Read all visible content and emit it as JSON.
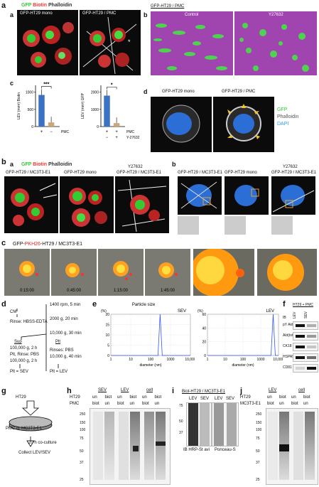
{
  "section_a": {
    "label": "a",
    "sub_a": {
      "label": "a",
      "legend": [
        {
          "text": "GFP",
          "color": "#33cc33"
        },
        {
          "text": "Biotin",
          "color": "#ff3333"
        },
        {
          "text": "Phalloidin",
          "color": "#ffffff"
        }
      ],
      "panels": [
        "GFP-HT29 mono",
        "GFP-HT29 / PMC"
      ]
    },
    "sub_b": {
      "label": "b",
      "title": "GFP-HT29 / PMC",
      "panels": [
        "Control",
        "Y27632"
      ]
    },
    "sub_c": {
      "label": "c"
    },
    "sub_d": {
      "label": "d",
      "panels": [
        "GFP-HT29 mono",
        "GFP-HT29 / PMC"
      ],
      "legend": [
        {
          "text": "GFP",
          "color": "#33cc33"
        },
        {
          "text": "Phalloidin",
          "color": "#ffffff"
        },
        {
          "text": "DAPI",
          "color": "#3399ff"
        }
      ]
    }
  },
  "chart_data": [
    {
      "type": "bar",
      "ylabel": "LEV (mm²) Biotin",
      "categories": [
        "+",
        "−"
      ],
      "row_label": "PMC",
      "values": [
        920,
        120
      ],
      "ylim": [
        0,
        1200
      ],
      "yticks": [
        0,
        500,
        1000
      ],
      "significance": "***",
      "colors": [
        "#3b73c4",
        "#c8a87a"
      ]
    },
    {
      "type": "bar",
      "ylabel": "LEV (mm²) GFP",
      "categories": [
        "+",
        "+"
      ],
      "row_labels": [
        {
          "name": "PMC",
          "values": [
            "+",
            "+"
          ]
        },
        {
          "name": "Y-27632",
          "values": [
            "−",
            "+"
          ]
        }
      ],
      "values": [
        1800,
        200
      ],
      "ylim": [
        0,
        2400
      ],
      "yticks": [
        0,
        1000,
        2000
      ],
      "significance": "*",
      "colors": [
        "#3b73c4",
        "#c8a87a"
      ]
    },
    {
      "type": "line",
      "title": "Particle size",
      "series_name": "SEV",
      "xlabel": "diameter (nm)",
      "ylabel": "(%)",
      "xticks": [
        "1",
        "10",
        "100",
        "1000",
        "10,000"
      ],
      "yticks": [
        0,
        5,
        10,
        15,
        20
      ],
      "peak_x": 300,
      "peak_y": 20
    },
    {
      "type": "line",
      "series_name": "LEV",
      "xlabel": "diameter (nm)",
      "ylabel": "(%)",
      "xticks": [
        "1",
        "10",
        "100",
        "1000",
        "10,000"
      ],
      "yticks": [
        0,
        20,
        40,
        60
      ],
      "peak_x": 5000,
      "peak_y": 60
    }
  ],
  "section_b": {
    "label": "b",
    "sub_a": {
      "label": "a",
      "legend": [
        {
          "text": "GFP",
          "color": "#33cc33"
        },
        {
          "text": "Biotin",
          "color": "#ff3333"
        },
        {
          "text": "Phalloidin",
          "color": "#ffffff"
        }
      ],
      "panels": [
        "GFP-HT29 / MC3T3-E1",
        "GFP-HT29 mono",
        "GFP-HT29 / MC3T3-E1"
      ],
      "treatment": "Y27632"
    },
    "sub_b": {
      "label": "b",
      "panels": [
        "GFP-HT29 / MC3T3-E1",
        "GFP-HT29 mono",
        "GFP-HT29 / MC3T3-E1"
      ],
      "treatment": "Y27632"
    }
  },
  "section_c": {
    "label": "c",
    "title_parts": [
      {
        "text": "GFP-",
        "color": "#111111"
      },
      {
        "text": "PKH26",
        "color": "#dd2222"
      },
      {
        "text": "-HT29 / MC3T3-E1",
        "color": "#111111"
      }
    ],
    "timestamps": [
      "0:15:00",
      "0:45:00",
      "1:15:00",
      "1:45:00"
    ]
  },
  "section_d": {
    "label": "d",
    "cm": "CM",
    "rinse": "Rinse: HBSS-EDTA",
    "step1": "1400 rpm, 5 min",
    "step2": "2000 g, 20 min",
    "step3": "10,000 g, 30 min",
    "sup": "Sup",
    "step4": "100,000 g, 2 h",
    "plt_rinse": "Plt, Rinse: PBS",
    "step5": "100,000 g, 2 h",
    "plt": "Plt",
    "rinse_pbs": "Rinses: PBS",
    "step6": "10,000 g, 40 min",
    "result_sev": "Plt = SEV",
    "result_lev": "Plt = LEV"
  },
  "section_e": {
    "label": "e"
  },
  "section_f": {
    "label": "f",
    "header": "HT29 + PMC",
    "lanes": [
      "LEV",
      "SEV"
    ],
    "ib": "IB",
    "rows": [
      "pY Akt",
      "Akt(total)",
      "CK18",
      "HSPA5",
      "CD81"
    ]
  },
  "section_g": {
    "label": "g",
    "top": "HT29",
    "middle": "PMC or MC3T3-E1",
    "step": "20 h co-culture",
    "bottom": "Collect LEV/SEV"
  },
  "section_h": {
    "label": "h",
    "groups": [
      "SEV",
      "LEV",
      "cell"
    ],
    "row1_label": "HT29",
    "row1": [
      "un",
      "biot",
      "un",
      "biot",
      "un",
      "biot"
    ],
    "row2_label": "PMC",
    "row2": [
      "biot",
      "un",
      "biot",
      "un",
      "biot",
      "un"
    ],
    "mw": [
      "250",
      "150",
      "100",
      "75",
      "50",
      "37",
      "25"
    ]
  },
  "section_i": {
    "label": "i",
    "title": "Biot-HT29 / MC3T3-E1",
    "lanes": [
      "LEV",
      "SEV",
      "LEV",
      "SEV"
    ],
    "mw": [
      "75",
      "50",
      "37"
    ],
    "caption1": "IB HRP-St avi",
    "caption2": "Ponceau-S"
  },
  "section_j": {
    "label": "j",
    "groups": [
      "LEV",
      "cell"
    ],
    "row1_label": "HT29",
    "row1": [
      "un",
      "biot",
      "un",
      "biot"
    ],
    "row2_label": "MC3T3-E1",
    "row2": [
      "biot",
      "un",
      "biot",
      "un"
    ],
    "mw": [
      "250",
      "150",
      "100",
      "75",
      "50",
      "37",
      "25"
    ]
  }
}
